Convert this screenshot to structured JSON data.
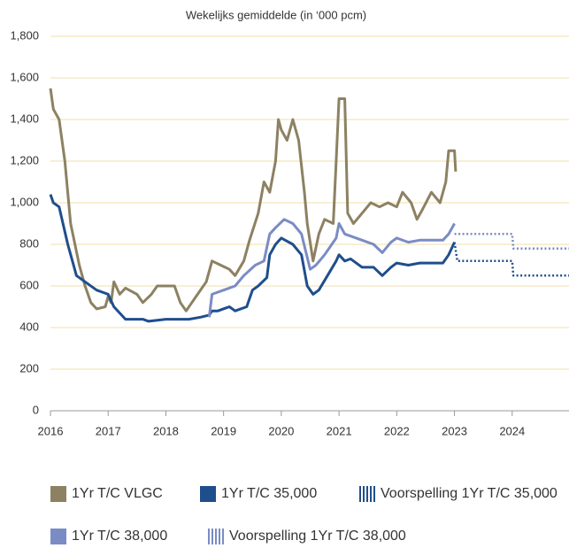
{
  "chart_data": {
    "type": "line",
    "title": "Wekelijks gemiddelde (in ‘000 pcm)",
    "xlim": [
      2016,
      2025
    ],
    "xticks": [
      2016,
      2017,
      2018,
      2019,
      2020,
      2021,
      2022,
      2023,
      2024
    ],
    "ylim": [
      0,
      1800
    ],
    "yticks": [
      0,
      200,
      400,
      600,
      800,
      {
        "value": 1000,
        "label": "1,000"
      },
      {
        "value": 1200,
        "label": "1,200"
      },
      {
        "value": 1400,
        "label": "1,400"
      },
      {
        "value": 1600,
        "label": "1,600"
      },
      {
        "value": 1800,
        "label": "1,800"
      }
    ],
    "grid": true,
    "series": [
      {
        "name": "1Yr T/C VLGC",
        "color": "#8c8162",
        "dashed": false,
        "x": [
          2016.0,
          2016.05,
          2016.15,
          2016.25,
          2016.35,
          2016.5,
          2016.6,
          2016.7,
          2016.8,
          2016.95,
          2017.0,
          2017.05,
          2017.1,
          2017.2,
          2017.3,
          2017.5,
          2017.6,
          2017.75,
          2017.85,
          2018.15,
          2018.25,
          2018.35,
          2018.45,
          2018.55,
          2018.7,
          2018.8,
          2018.95,
          2019.1,
          2019.2,
          2019.35,
          2019.45,
          2019.6,
          2019.7,
          2019.8,
          2019.9,
          2019.95,
          2020.0,
          2020.1,
          2020.2,
          2020.3,
          2020.4,
          2020.45,
          2020.55,
          2020.65,
          2020.75,
          2020.9,
          2020.95,
          2021.0,
          2021.1,
          2021.15,
          2021.25,
          2021.4,
          2021.55,
          2021.7,
          2021.85,
          2022.0,
          2022.1,
          2022.25,
          2022.35,
          2022.45,
          2022.6,
          2022.75,
          2022.85,
          2022.9,
          2023.0,
          2023.02
        ],
        "values": [
          1550,
          1450,
          1400,
          1200,
          900,
          700,
          600,
          520,
          490,
          500,
          550,
          520,
          620,
          560,
          590,
          560,
          520,
          560,
          600,
          600,
          520,
          480,
          520,
          560,
          620,
          720,
          700,
          680,
          650,
          720,
          820,
          950,
          1100,
          1050,
          1200,
          1400,
          1350,
          1300,
          1400,
          1300,
          1050,
          900,
          720,
          850,
          920,
          900,
          1200,
          1500,
          1500,
          950,
          900,
          950,
          1000,
          980,
          1000,
          980,
          1050,
          1000,
          920,
          970,
          1050,
          1000,
          1100,
          1250,
          1250,
          1150
        ]
      },
      {
        "name": "1Yr T/C 35,000",
        "color": "#1f4e8c",
        "dashed": false,
        "x": [
          2016.0,
          2016.05,
          2016.15,
          2016.3,
          2016.45,
          2016.6,
          2016.8,
          2017.0,
          2017.1,
          2017.3,
          2017.6,
          2017.7,
          2018.0,
          2018.4,
          2018.6,
          2018.75,
          2018.8,
          2018.9,
          2019.1,
          2019.2,
          2019.4,
          2019.5,
          2019.6,
          2019.75,
          2019.8,
          2019.9,
          2020.0,
          2020.2,
          2020.35,
          2020.45,
          2020.55,
          2020.65,
          2020.8,
          2020.95,
          2021.0,
          2021.1,
          2021.2,
          2021.4,
          2021.6,
          2021.75,
          2021.9,
          2022.0,
          2022.2,
          2022.4,
          2022.6,
          2022.8,
          2022.9,
          2023.0
        ],
        "values": [
          1040,
          1000,
          980,
          800,
          650,
          620,
          580,
          560,
          500,
          440,
          440,
          430,
          440,
          440,
          450,
          460,
          480,
          480,
          500,
          480,
          500,
          580,
          600,
          640,
          750,
          800,
          830,
          800,
          750,
          600,
          560,
          580,
          650,
          720,
          750,
          720,
          730,
          690,
          690,
          650,
          690,
          710,
          700,
          710,
          710,
          710,
          750,
          810
        ]
      },
      {
        "name": "Voorspelling 1Yr T/C 35,000",
        "color": "#1f4e8c",
        "dashed": true,
        "x": [
          2023.0,
          2023.05,
          2024.0,
          2024.02,
          2025.0
        ],
        "values": [
          810,
          720,
          720,
          650,
          650
        ]
      },
      {
        "name": "1Yr T/C 38,000",
        "color": "#7a8cc4",
        "dashed": false,
        "x": [
          2018.75,
          2018.8,
          2019.0,
          2019.2,
          2019.35,
          2019.55,
          2019.7,
          2019.8,
          2019.9,
          2020.05,
          2020.2,
          2020.35,
          2020.5,
          2020.6,
          2020.75,
          2020.95,
          2021.0,
          2021.1,
          2021.4,
          2021.6,
          2021.75,
          2021.9,
          2022.0,
          2022.2,
          2022.4,
          2022.6,
          2022.8,
          2022.9,
          2023.0
        ],
        "values": [
          450,
          560,
          580,
          600,
          650,
          700,
          720,
          850,
          880,
          920,
          900,
          850,
          680,
          700,
          750,
          830,
          900,
          850,
          820,
          800,
          760,
          810,
          830,
          810,
          820,
          820,
          820,
          850,
          900
        ]
      },
      {
        "name": "Voorspelling 1Yr T/C 38,000",
        "color": "#7a8cc4",
        "dashed": true,
        "x": [
          2023.0,
          2024.0,
          2024.02,
          2025.0
        ],
        "values": [
          850,
          850,
          780,
          780
        ]
      }
    ]
  }
}
